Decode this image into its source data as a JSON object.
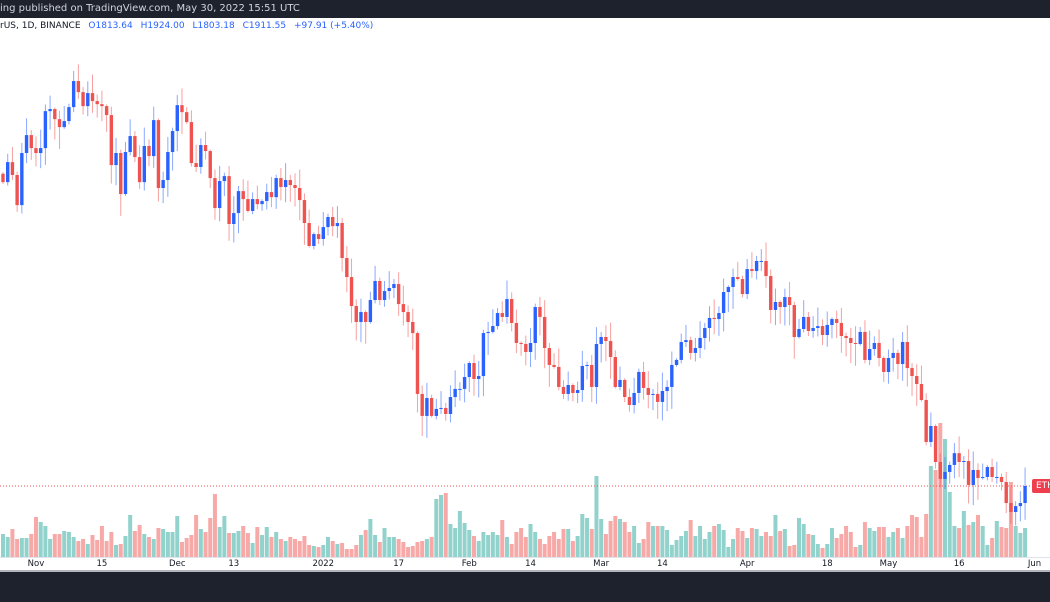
{
  "header": {
    "text": "ing published on TradingView.com, May 30, 2022 15:51 UTC"
  },
  "legend": {
    "symbol": "rUS, 1D, BINANCE",
    "open": "O1813.64",
    "high": "H1924.00",
    "low": "L1803.18",
    "close": "C1911.55",
    "change": "+97.91 (+5.40%)"
  },
  "price_tag": {
    "label": "ETH"
  },
  "colors": {
    "up": "#2962ff",
    "down": "#ef5350",
    "vol_up": "#26a69a",
    "vol_down": "#ef5350",
    "price_line": "#ef5350",
    "header_bg": "#1e222d"
  },
  "chart_data": {
    "type": "candlestick",
    "interval": "1D",
    "first_date": "2021-10-25",
    "last_date": "2022-05-30",
    "grid": false,
    "last_price": 1911.55,
    "x_ticks": [
      {
        "label": "Nov",
        "date": "2021-11-01"
      },
      {
        "label": "15",
        "date": "2021-11-15"
      },
      {
        "label": "Dec",
        "date": "2021-12-01"
      },
      {
        "label": "13",
        "date": "2021-12-13"
      },
      {
        "label": "2022",
        "date": "2022-01-01"
      },
      {
        "label": "17",
        "date": "2022-01-17"
      },
      {
        "label": "Feb",
        "date": "2022-02-01"
      },
      {
        "label": "14",
        "date": "2022-02-14"
      },
      {
        "label": "Mar",
        "date": "2022-03-01"
      },
      {
        "label": "14",
        "date": "2022-03-14"
      },
      {
        "label": "Apr",
        "date": "2022-04-01"
      },
      {
        "label": "18",
        "date": "2022-04-18"
      },
      {
        "label": "May",
        "date": "2022-05-01"
      },
      {
        "label": "16",
        "date": "2022-05-16"
      },
      {
        "label": "Jun",
        "date": "2022-06-01"
      }
    ],
    "closes": [
      4082,
      4225,
      4133,
      3918,
      4290,
      4418,
      4325,
      4290,
      4325,
      4589,
      4604,
      4532,
      4475,
      4518,
      4618,
      4804,
      4725,
      4625,
      4718,
      4661,
      4639,
      4625,
      4561,
      4204,
      4290,
      3997,
      4297,
      4411,
      4261,
      4082,
      4340,
      4268,
      4525,
      4040,
      4097,
      4297,
      4447,
      4632,
      4582,
      4511,
      4218,
      4190,
      4347,
      4304,
      4111,
      3897,
      4090,
      4125,
      3783,
      3861,
      4018,
      3961,
      3876,
      3961,
      3925,
      3947,
      4011,
      3975,
      4111,
      4047,
      4097,
      4061,
      4040,
      3954,
      3790,
      3626,
      3711,
      3676,
      3761,
      3833,
      3768,
      3790,
      3540,
      3404,
      3197,
      3083,
      3154,
      3083,
      3240,
      3376,
      3240,
      3304,
      3326,
      3354,
      3211,
      3154,
      3083,
      3004,
      2569,
      2412,
      2540,
      2412,
      2462,
      2469,
      2426,
      2547,
      2605,
      2605,
      2690,
      2790,
      2676,
      2697,
      3004,
      3012,
      3054,
      3147,
      3119,
      3247,
      3076,
      2933,
      2926,
      2869,
      2933,
      3190,
      3119,
      2897,
      2776,
      2762,
      2619,
      2569,
      2633,
      2576,
      2597,
      2769,
      2776,
      2619,
      2926,
      2976,
      2947,
      2833,
      2619,
      2669,
      2547,
      2490,
      2576,
      2726,
      2612,
      2562,
      2569,
      2512,
      2590,
      2619,
      2776,
      2812,
      2940,
      2954,
      2862,
      2897,
      2969,
      3040,
      3112,
      3104,
      3147,
      3297,
      3333,
      3404,
      3390,
      3283,
      3461,
      3447,
      3519,
      3519,
      3411,
      3169,
      3226,
      3190,
      3261,
      3204,
      2976,
      3033,
      3119,
      3019,
      3040,
      3054,
      2990,
      3062,
      3104,
      3076,
      2983,
      2969,
      2933,
      2926,
      3012,
      2812,
      2890,
      2933,
      2826,
      2726,
      2826,
      2862,
      2783,
      2940,
      2754,
      2697,
      2640,
      2526,
      2226,
      2340,
      2083,
      1962,
      2012,
      2062,
      2146,
      2083,
      2090,
      1919,
      2026,
      1969,
      1976,
      2047,
      1976,
      1976,
      1940,
      1790,
      1726,
      1768,
      1790,
      1911.55
    ],
    "volume_relative": [
      25,
      22,
      30,
      20,
      21,
      21,
      25,
      42,
      37,
      33,
      20,
      25,
      25,
      28,
      27,
      22,
      18,
      20,
      15,
      24,
      19,
      33,
      18,
      27,
      14,
      15,
      23,
      44,
      28,
      34,
      25,
      22,
      20,
      31,
      30,
      27,
      27,
      43,
      17,
      21,
      24,
      44,
      30,
      27,
      41,
      65,
      32,
      43,
      26,
      26,
      28,
      33,
      26,
      16,
      32,
      24,
      32,
      22,
      27,
      20,
      18,
      22,
      20,
      18,
      23,
      14,
      13,
      12,
      14,
      22,
      18,
      15,
      16,
      10,
      10,
      14,
      24,
      29,
      40,
      24,
      17,
      31,
      22,
      22,
      20,
      17,
      12,
      13,
      17,
      18,
      20,
      22,
      60,
      64,
      66,
      35,
      31,
      48,
      36,
      29,
      23,
      18,
      27,
      24,
      27,
      24,
      39,
      22,
      15,
      27,
      31,
      22,
      35,
      27,
      20,
      15,
      23,
      27,
      20,
      30,
      30,
      18,
      23,
      45,
      41,
      30,
      83,
      40,
      25,
      38,
      43,
      40,
      37,
      27,
      33,
      16,
      20,
      37,
      33,
      33,
      33,
      29,
      14,
      19,
      23,
      28,
      39,
      23,
      33,
      20,
      27,
      33,
      35,
      29,
      12,
      20,
      31,
      28,
      21,
      31,
      30,
      23,
      27,
      23,
      44,
      28,
      30,
      13,
      14,
      41,
      35,
      25,
      24,
      15,
      11,
      15,
      31,
      21,
      25,
      33,
      27,
      12,
      14,
      37,
      31,
      28,
      32,
      32,
      22,
      27,
      31,
      21,
      33,
      44,
      42,
      22,
      45,
      93,
      89,
      136,
      120,
      67,
      33,
      31,
      48,
      34,
      37,
      44,
      33,
      14,
      21,
      38,
      32,
      31,
      77,
      33,
      26,
      31
    ]
  }
}
